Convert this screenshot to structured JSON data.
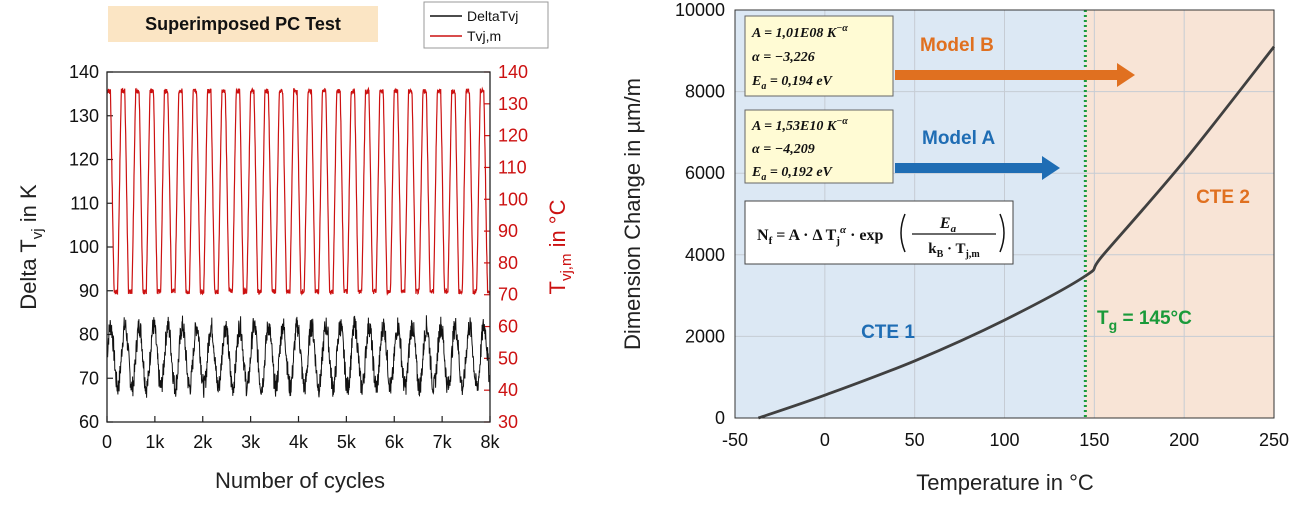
{
  "chart_data": [
    {
      "type": "line",
      "title": "Superimposed PC Test",
      "xlabel": "Number of cycles",
      "ylabel": "Delta T",
      "ylabel_sub": "vj",
      "ylabel_suffix": " in K",
      "y2label": "T",
      "y2label_sub": "vj,m",
      "y2label_suffix": " in °C",
      "xlim": [
        0,
        8000
      ],
      "ylim": [
        60,
        140
      ],
      "y2lim": [
        30,
        140
      ],
      "x_ticks": [
        "0",
        "1k",
        "2k",
        "3k",
        "4k",
        "5k",
        "6k",
        "7k",
        "8k"
      ],
      "y_ticks": [
        60,
        70,
        80,
        90,
        100,
        110,
        120,
        130,
        140
      ],
      "y2_ticks": [
        30,
        40,
        50,
        60,
        70,
        80,
        90,
        100,
        110,
        120,
        130,
        140
      ],
      "legend_position": "top-right",
      "series": [
        {
          "name": "DeltaTvj",
          "color": "#111111",
          "axis": "left",
          "cycle_period": 300,
          "min": 68,
          "max": 82
        },
        {
          "name": "Tvj,m",
          "color": "#cc1111",
          "axis": "right",
          "cycle_period": 300,
          "min": 71,
          "max": 134
        }
      ]
    },
    {
      "type": "line",
      "xlabel": "Temperature in °C",
      "ylabel": "Dimension Change in µm/m",
      "xlim": [
        -50,
        250
      ],
      "ylim": [
        0,
        10000
      ],
      "x_ticks": [
        -50,
        0,
        50,
        100,
        150,
        200,
        250
      ],
      "y_ticks": [
        0,
        2000,
        4000,
        6000,
        8000,
        10000
      ],
      "series": [
        {
          "name": "Dimension change",
          "color": "#404040",
          "x": [
            -37,
            0,
            50,
            100,
            145,
            155,
            200,
            250
          ],
          "y": [
            0,
            560,
            1400,
            2400,
            3480,
            4000,
            6300,
            9100
          ]
        }
      ],
      "regions": [
        {
          "label": "CTE 1",
          "from": -50,
          "to": 145,
          "color": "#dce8f4",
          "text_color": "#1f6db4"
        },
        {
          "label": "CTE 2",
          "from": 145,
          "to": 250,
          "color": "#f8e4d6",
          "text_color": "#e07020"
        }
      ],
      "tg_line": {
        "x": 145,
        "label": "T",
        "label_sub": "g",
        "label_suffix": " = 145°C",
        "color": "#1a9a3a"
      },
      "annotations": [
        {
          "model": "Model B",
          "color": "#e07020",
          "A": "1,01E08",
          "alpha": "−3,226",
          "Ea": "0,194"
        },
        {
          "model": "Model A",
          "color": "#1f6db4",
          "A": "1,53E10",
          "alpha": "−4,209",
          "Ea": "0,192"
        }
      ],
      "formula": "Nf = A · ΔTj^α · exp(Ea / (kB · Tj,m))"
    }
  ]
}
